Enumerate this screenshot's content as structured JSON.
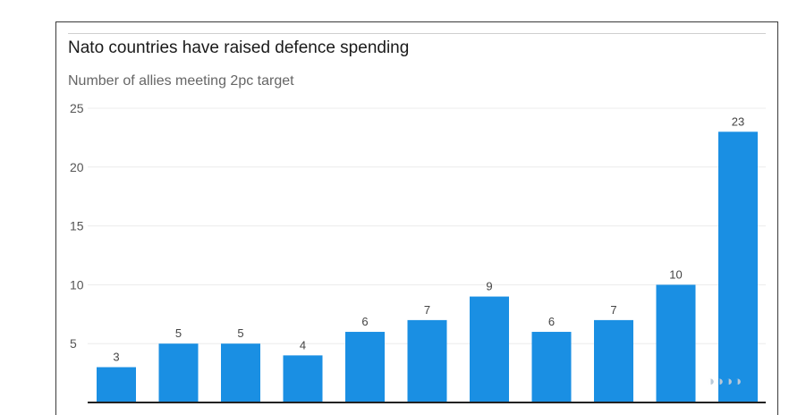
{
  "chart_data": {
    "type": "bar",
    "title": "Nato countries have raised defence spending",
    "subtitle": "Number of allies meeting 2pc target",
    "categories": [
      "",
      "",
      "",
      "",
      "",
      "",
      "",
      "",
      "",
      "",
      ""
    ],
    "values": [
      3,
      5,
      5,
      4,
      6,
      7,
      9,
      6,
      7,
      10,
      23
    ],
    "yticks": [
      5,
      10,
      15,
      20,
      25
    ],
    "ylim": [
      0,
      25
    ],
    "xlabel": "",
    "ylabel": "",
    "grid": true,
    "bar_color": "#1a8fe3",
    "watermark_glyph": "◑◑◑◑"
  }
}
